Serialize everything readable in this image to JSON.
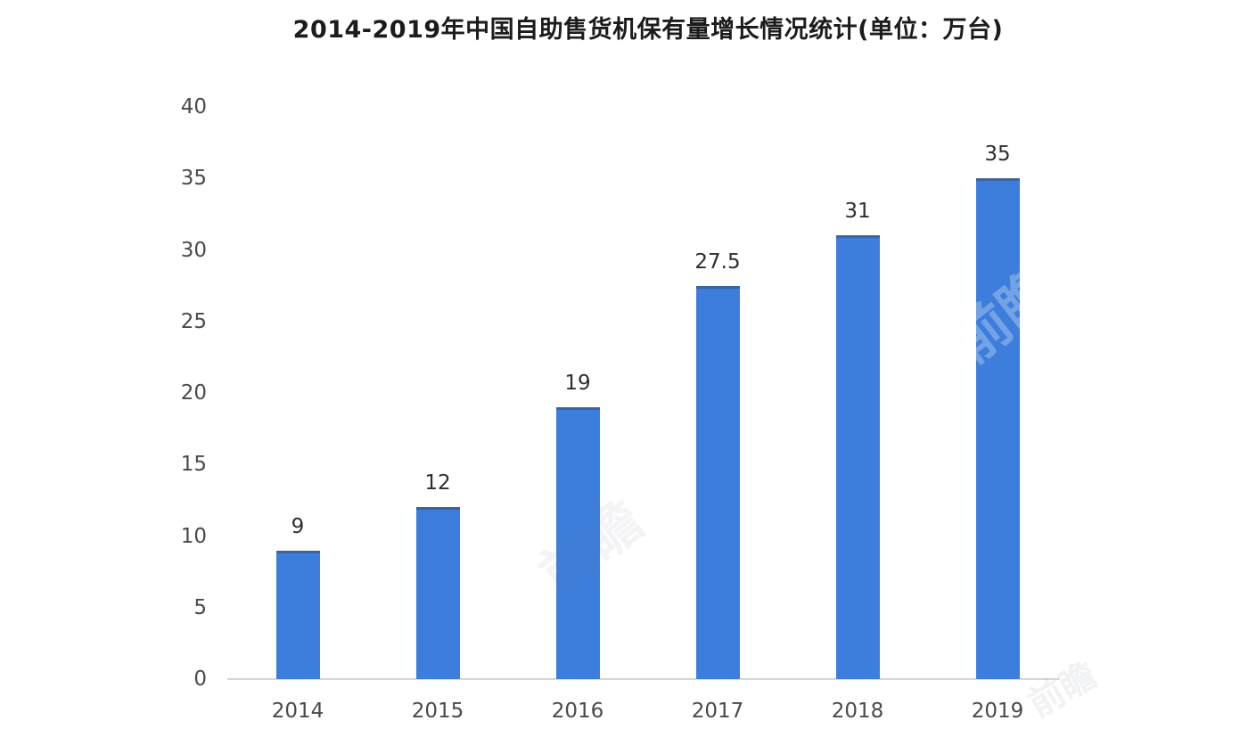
{
  "chart_data": {
    "type": "bar",
    "title": "2014-2019年中国自助售货机保有量增长情况统计(单位：万台)",
    "unit": "万台",
    "categories": [
      "2014",
      "2015",
      "2016",
      "2017",
      "2018",
      "2019"
    ],
    "values": [
      9,
      12,
      19,
      27.5,
      31,
      35
    ],
    "value_labels": [
      "9",
      "12",
      "19",
      "27.5",
      "31",
      "35"
    ],
    "xlabel": "",
    "ylabel": "",
    "ylim": [
      0,
      40
    ],
    "yticks": [
      0,
      5,
      10,
      15,
      20,
      25,
      30,
      35,
      40
    ],
    "grid": false,
    "legend_position": "none",
    "colors": {
      "bar": "#3d7edd",
      "bar_top_edge": "rgba(60,72,90,0.5)",
      "axis_line": "#d6d6d6",
      "title_text": "#1c1c1c",
      "tick_text": "#4a4a4a",
      "value_text": "#2e2e2e",
      "background": "#ffffff"
    }
  },
  "watermark": {
    "text": "前瞻"
  }
}
